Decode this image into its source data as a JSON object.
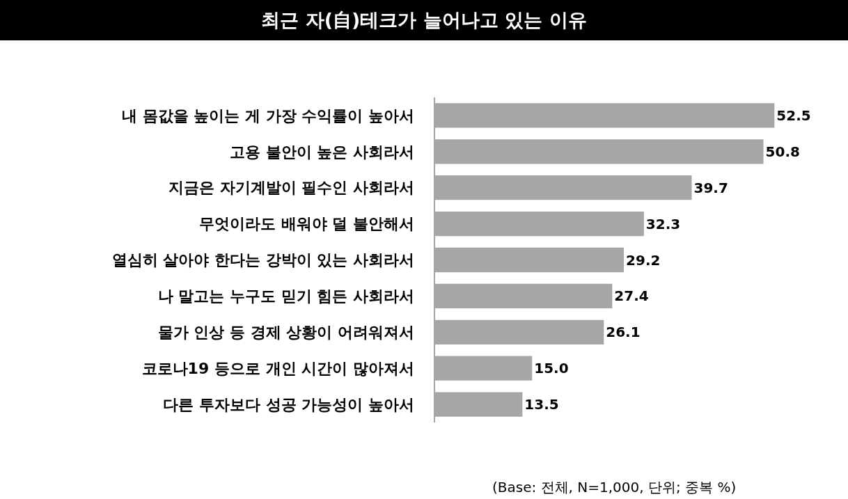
{
  "chart_data": {
    "type": "bar",
    "orientation": "horizontal",
    "title": "최근 자(自)테크가 늘어나고 있는 이유",
    "categories": [
      "내 몸값을 높이는 게 가장 수익률이 높아서",
      "고용 불안이 높은 사회라서",
      "지금은 자기계발이 필수인 사회라서",
      "무엇이라도 배워야 덜 불안해서",
      "열심히 살아야 한다는 강박이 있는 사회라서",
      "나 말고는 누구도 믿기 힘든 사회라서",
      "물가 인상 등 경제 상황이 어려워져서",
      "코로나19 등으로 개인 시간이 많아져서",
      "다른 투자보다 성공 가능성이 높아서"
    ],
    "values": [
      52.5,
      50.8,
      39.7,
      32.3,
      29.2,
      27.4,
      26.1,
      15.0,
      13.5
    ],
    "value_labels": [
      "52.5",
      "50.8",
      "39.7",
      "32.3",
      "29.2",
      "27.4",
      "26.1",
      "15.0",
      "13.5"
    ],
    "color": "#a6a6a6",
    "tick_labels": "y",
    "annotations": [
      "(Base: 전체, N=1,000, 단위; 중복 %)"
    ]
  }
}
